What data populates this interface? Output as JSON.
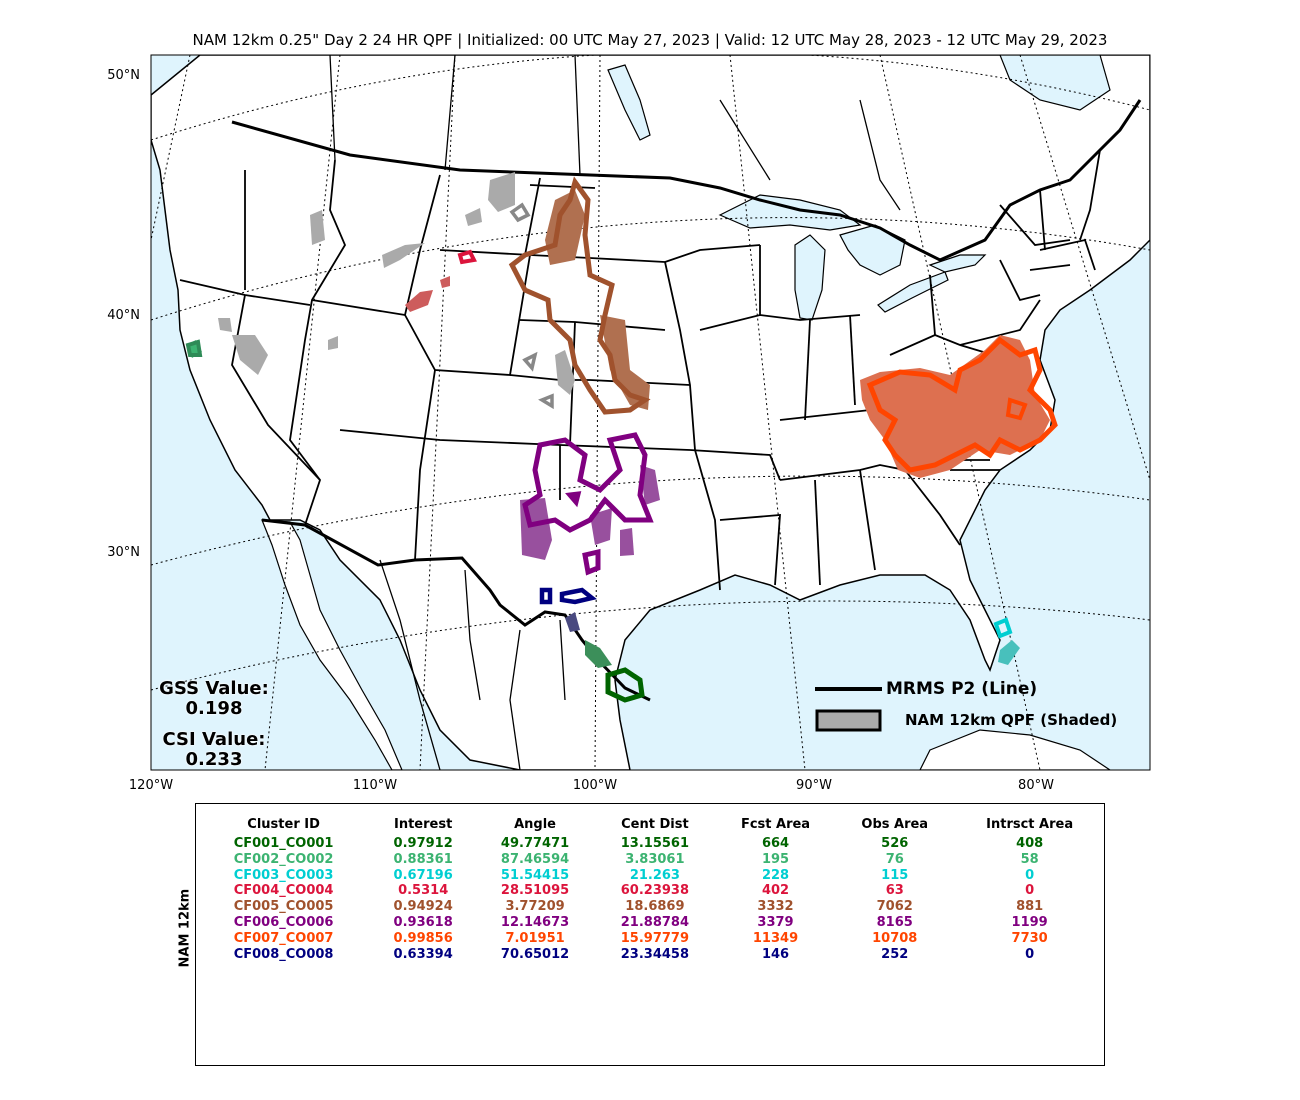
{
  "title": "NAM 12km 0.25\" Day 2 24 HR QPF | Initialized: 00 UTC May 27, 2023 | Valid: 12 UTC May 28, 2023 - 12 UTC May 29, 2023",
  "lat_labels": [
    "50°N",
    "40°N",
    "30°N"
  ],
  "lon_labels": [
    "120°W",
    "110°W",
    "100°W",
    "90°W",
    "80°W"
  ],
  "scores": {
    "gss_label": "GSS Value:",
    "gss_value": "0.198",
    "csi_label": "CSI Value:",
    "csi_value": "0.233"
  },
  "legend": {
    "obs_label": "MRMS P2 (Line)",
    "fcst_label": "NAM 12km QPF (Shaded)"
  },
  "colors": {
    "ocean": "#dff4fd",
    "land": "#ffffff"
  },
  "table": {
    "side_label": "NAM 12km",
    "headers": [
      "Cluster ID",
      "Interest",
      "Angle",
      "Cent Dist",
      "Fcst Area",
      "Obs Area",
      "Intrsct Area"
    ],
    "rows": [
      {
        "color": "#006400",
        "cells": [
          "CF001_CO001",
          "0.97912",
          "49.77471",
          "13.15561",
          "664",
          "526",
          "408"
        ]
      },
      {
        "color": "#3cb371",
        "cells": [
          "CF002_CO002",
          "0.88361",
          "87.46594",
          "3.83061",
          "195",
          "76",
          "58"
        ]
      },
      {
        "color": "#00ced1",
        "cells": [
          "CF003_CO003",
          "0.67196",
          "51.54415",
          "21.263",
          "228",
          "115",
          "0"
        ]
      },
      {
        "color": "#dc143c",
        "cells": [
          "CF004_CO004",
          "0.5314",
          "28.51095",
          "60.23938",
          "402",
          "63",
          "0"
        ]
      },
      {
        "color": "#a0522d",
        "cells": [
          "CF005_CO005",
          "0.94924",
          "3.77209",
          "18.6869",
          "3332",
          "7062",
          "881"
        ]
      },
      {
        "color": "#800080",
        "cells": [
          "CF006_CO006",
          "0.93618",
          "12.14673",
          "21.88784",
          "3379",
          "8165",
          "1199"
        ]
      },
      {
        "color": "#ff4500",
        "cells": [
          "CF007_CO007",
          "0.99856",
          "7.01951",
          "15.97779",
          "11349",
          "10708",
          "7730"
        ]
      },
      {
        "color": "#000080",
        "cells": [
          "CF008_CO008",
          "0.63394",
          "70.65012",
          "23.34458",
          "146",
          "252",
          "0"
        ]
      }
    ]
  }
}
